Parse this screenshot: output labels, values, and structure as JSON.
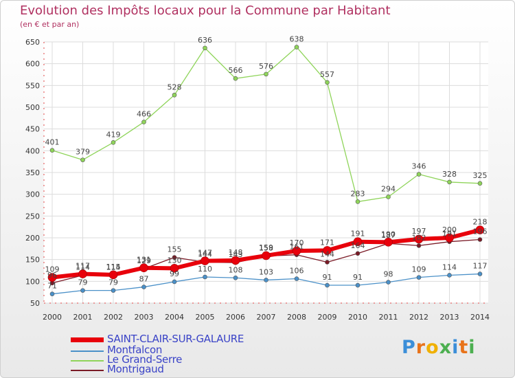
{
  "header": {
    "title": "Evolution des Impôts locaux pour la Commune par Habitant",
    "subtitle": "(en € et par an)"
  },
  "colors": {
    "title": "#b03060",
    "legend_text": "#3a43c7",
    "grid": "#dcdcdc"
  },
  "chart_data": {
    "type": "line",
    "title": "Evolution des Impôts locaux pour la Commune par Habitant",
    "subtitle": "(en € et par an)",
    "x": [
      "2000",
      "2001",
      "2002",
      "2003",
      "2004",
      "2005",
      "2006",
      "2007",
      "2008",
      "2009",
      "2010",
      "2011",
      "2012",
      "2013",
      "2014"
    ],
    "ylim": [
      50,
      650
    ],
    "yticks": [
      50,
      100,
      150,
      200,
      250,
      300,
      350,
      400,
      450,
      500,
      550,
      600,
      650
    ],
    "grid": true,
    "legend_position": "bottom-left",
    "series": [
      {
        "name": "SAINT-CLAIR-SUR-GALAURE",
        "color": "#e8000b",
        "values": [
          109,
          117,
          115,
          131,
          130,
          147,
          148,
          159,
          170,
          171,
          191,
          190,
          197,
          200,
          218
        ]
      },
      {
        "name": "Montfalcon",
        "color": "#4a90c8",
        "values": [
          71,
          79,
          79,
          87,
          99,
          110,
          108,
          103,
          106,
          91,
          91,
          98,
          109,
          114,
          117
        ]
      },
      {
        "name": "Le Grand-Serre",
        "color": "#8fd45a",
        "values": [
          401,
          379,
          419,
          466,
          528,
          636,
          566,
          576,
          638,
          557,
          283,
          294,
          346,
          328,
          325
        ]
      },
      {
        "name": "Montrigaud",
        "color": "#7a1a26",
        "values": [
          96,
          114,
          114,
          129,
          155,
          144,
          143,
          158,
          161,
          144,
          164,
          187,
          182,
          191,
          196
        ]
      }
    ]
  },
  "brand": {
    "logo_text": "Proxiti",
    "logo_colors": [
      "#3b8ed8",
      "#e8731a",
      "#f0b000",
      "#4caf50",
      "#3b8ed8",
      "#e8731a",
      "#4caf50"
    ]
  }
}
